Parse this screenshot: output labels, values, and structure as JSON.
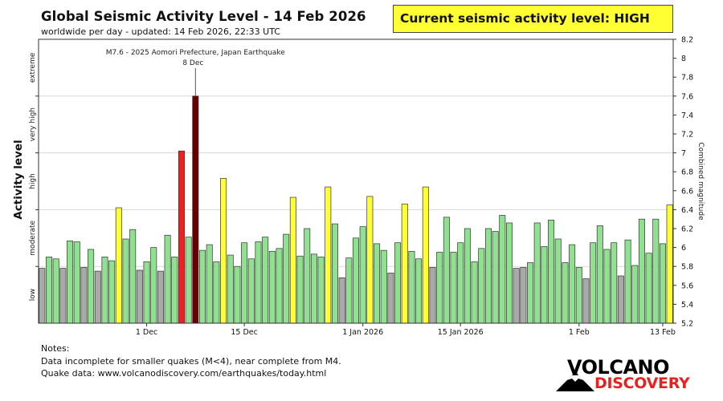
{
  "header": {
    "title": "Global Seismic Activity Level - 14 Feb 2026",
    "subtitle": "worldwide per day - updated: 14 Feb 2026, 22:33 UTC"
  },
  "level_box": {
    "text": "Current seismic activity level: HIGH"
  },
  "notes": {
    "heading": "Notes:",
    "line1": "Data incomplete for smaller quakes (M<4), near complete from M4.",
    "line2": "Quake data: www.volcanodiscovery.com/earthquakes/today.html"
  },
  "logo": {
    "line1": "VOLCANO",
    "line2": "DISCOVERY"
  },
  "colors": {
    "low": "#a9a9a9",
    "moderate": "#8fe08f",
    "high": "#ffff33",
    "very_high": "#ee2020",
    "extreme": "#660000",
    "level_box_bg": "#ffff33",
    "logo_red": "#e8211f"
  },
  "chart_data": {
    "type": "bar",
    "title": "Global Seismic Activity Level - 14 Feb 2026",
    "ylabel_left": "Activity level",
    "ylabel_right": "Combined magnitude",
    "ylim": [
      5.2,
      8.2
    ],
    "yticks": [
      5.2,
      5.4,
      5.6,
      5.8,
      6.0,
      6.2,
      6.4,
      6.6,
      6.8,
      7.0,
      7.2,
      7.4,
      7.6,
      7.8,
      8.0,
      8.2
    ],
    "ytick_labels": [
      "5.2",
      "5.4",
      "5.6",
      "5.8",
      "6",
      "6.2",
      "6.4",
      "6.6",
      "6.8",
      "7",
      "7.2",
      "7.4",
      "7.6",
      "7.8",
      "8",
      "8.2"
    ],
    "level_bands": [
      {
        "label": "low",
        "from": 5.2,
        "to": 5.8
      },
      {
        "label": "moderate",
        "from": 5.8,
        "to": 6.4
      },
      {
        "label": "high",
        "from": 6.4,
        "to": 7.0
      },
      {
        "label": "very high",
        "from": 7.0,
        "to": 7.6
      },
      {
        "label": "extreme",
        "from": 7.6,
        "to": 8.2
      }
    ],
    "level_thresholds": [
      5.8,
      6.4,
      7.0,
      7.6
    ],
    "x_ticks": [
      {
        "label": "1 Dec",
        "index": 15
      },
      {
        "label": "15 Dec",
        "index": 29
      },
      {
        "label": "1 Jan 2026",
        "index": 46
      },
      {
        "label": "15 Jan 2026",
        "index": 60
      },
      {
        "label": "1 Feb",
        "index": 77
      },
      {
        "label": "13 Feb",
        "index": 89
      }
    ],
    "annotation": {
      "text": "M7.6 - 2025 Aomori Prefecture, Japan Earthquake",
      "date": "8 Dec",
      "index": 22
    },
    "values": [
      5.78,
      5.9,
      5.88,
      5.78,
      6.07,
      6.06,
      5.79,
      5.98,
      5.75,
      5.9,
      5.86,
      6.42,
      6.09,
      6.19,
      5.76,
      5.85,
      6.0,
      5.75,
      6.13,
      5.9,
      7.02,
      6.11,
      7.6,
      5.97,
      6.03,
      5.85,
      6.73,
      5.92,
      5.8,
      6.05,
      5.88,
      6.06,
      6.11,
      5.96,
      5.99,
      6.14,
      6.53,
      5.91,
      6.2,
      5.93,
      5.9,
      6.64,
      6.25,
      5.68,
      5.89,
      6.1,
      6.22,
      6.54,
      6.04,
      5.97,
      5.73,
      6.05,
      6.46,
      5.96,
      5.88,
      6.64,
      5.79,
      5.95,
      6.32,
      5.95,
      6.05,
      6.2,
      5.85,
      5.99,
      6.2,
      6.17,
      6.34,
      6.26,
      5.78,
      5.79,
      5.84,
      6.26,
      6.01,
      6.29,
      6.09,
      5.84,
      6.03,
      5.79,
      5.67,
      6.05,
      6.23,
      5.98,
      6.05,
      5.7,
      6.08,
      5.81,
      6.3,
      5.94,
      6.3,
      6.04,
      6.45
    ],
    "categories": [
      "low",
      "moderate",
      "moderate",
      "low",
      "moderate",
      "moderate",
      "low",
      "moderate",
      "low",
      "moderate",
      "moderate",
      "high",
      "moderate",
      "moderate",
      "low",
      "moderate",
      "moderate",
      "low",
      "moderate",
      "moderate",
      "very high",
      "moderate",
      "extreme",
      "moderate",
      "moderate",
      "moderate",
      "high",
      "moderate",
      "moderate",
      "moderate",
      "moderate",
      "moderate",
      "moderate",
      "moderate",
      "moderate",
      "moderate",
      "high",
      "moderate",
      "moderate",
      "moderate",
      "moderate",
      "high",
      "moderate",
      "low",
      "moderate",
      "moderate",
      "moderate",
      "high",
      "moderate",
      "moderate",
      "low",
      "moderate",
      "high",
      "moderate",
      "moderate",
      "high",
      "low",
      "moderate",
      "moderate",
      "moderate",
      "moderate",
      "moderate",
      "moderate",
      "moderate",
      "moderate",
      "moderate",
      "moderate",
      "moderate",
      "low",
      "low",
      "moderate",
      "moderate",
      "moderate",
      "moderate",
      "moderate",
      "moderate",
      "moderate",
      "moderate",
      "low",
      "moderate",
      "moderate",
      "moderate",
      "moderate",
      "low",
      "moderate",
      "moderate",
      "moderate",
      "moderate",
      "moderate",
      "moderate",
      "high"
    ]
  }
}
